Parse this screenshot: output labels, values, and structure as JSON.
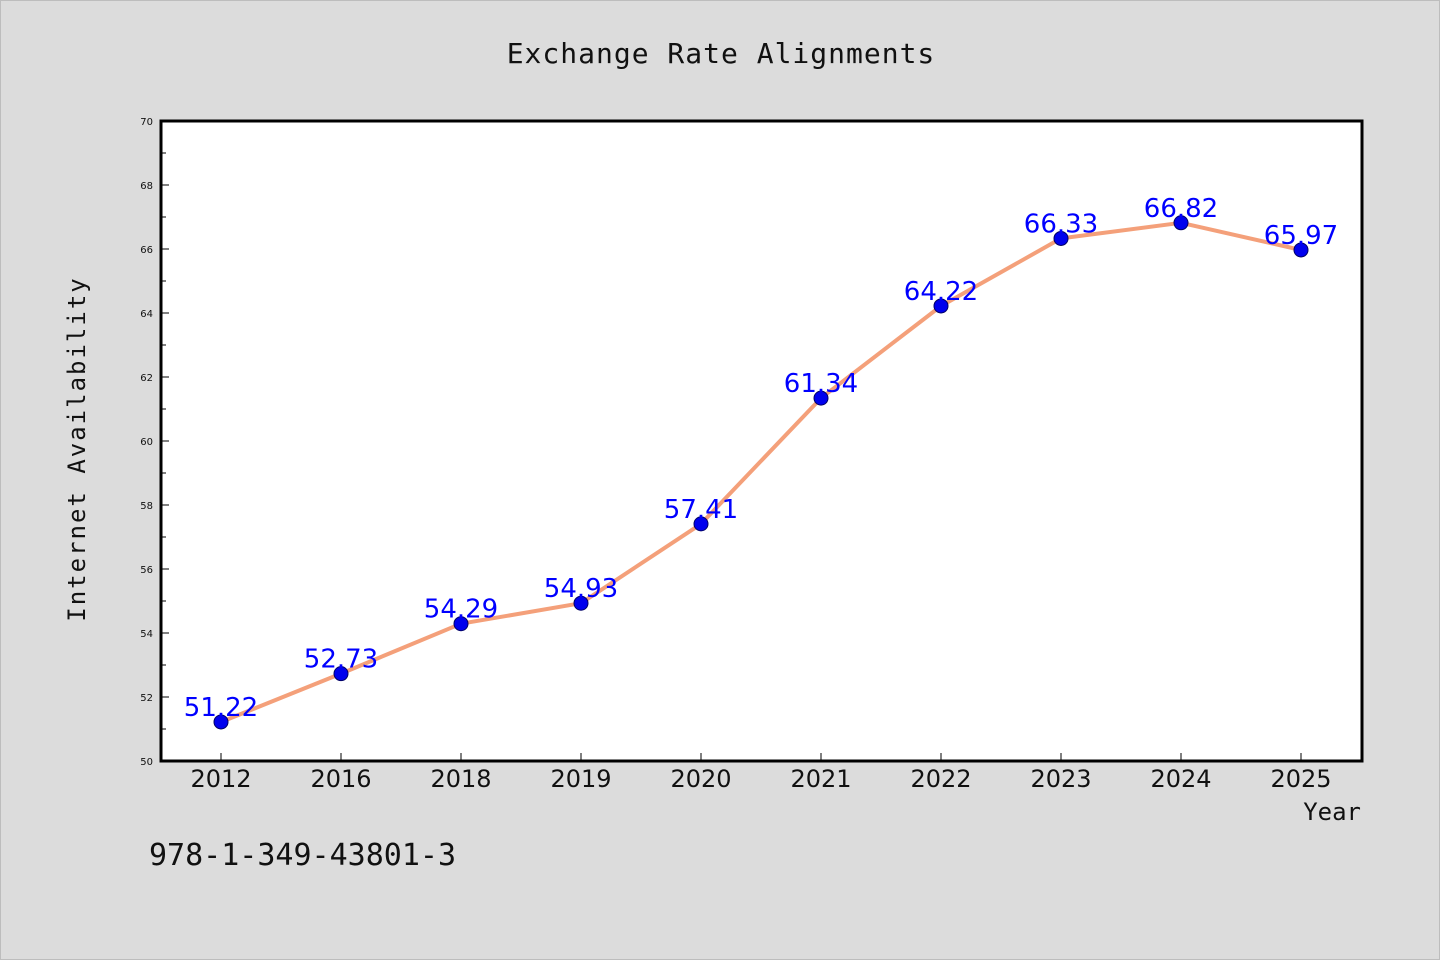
{
  "chart_data": {
    "type": "line",
    "title": "Exchange Rate Alignments",
    "xlabel": "Year",
    "ylabel": "Internet Availability",
    "categories": [
      "2012",
      "2016",
      "2018",
      "2019",
      "2020",
      "2021",
      "2022",
      "2023",
      "2024",
      "2025"
    ],
    "values": [
      51.22,
      52.73,
      54.29,
      54.93,
      57.41,
      61.34,
      64.22,
      66.33,
      66.82,
      65.97
    ],
    "data_labels": [
      "51.22",
      "52.73",
      "54.29",
      "54.93",
      "57.41",
      "61.34",
      "64.22",
      "66.33",
      "66.82",
      "65.97"
    ],
    "ylim": [
      50,
      70
    ],
    "yticks": [
      50,
      52,
      54,
      56,
      58,
      60,
      62,
      64,
      66,
      68,
      70
    ],
    "grid": false,
    "line_color": "#f4a07a",
    "marker_color": "#0000ee",
    "label_color": "#0000ff"
  },
  "footer_text": "978-1-349-43801-3"
}
